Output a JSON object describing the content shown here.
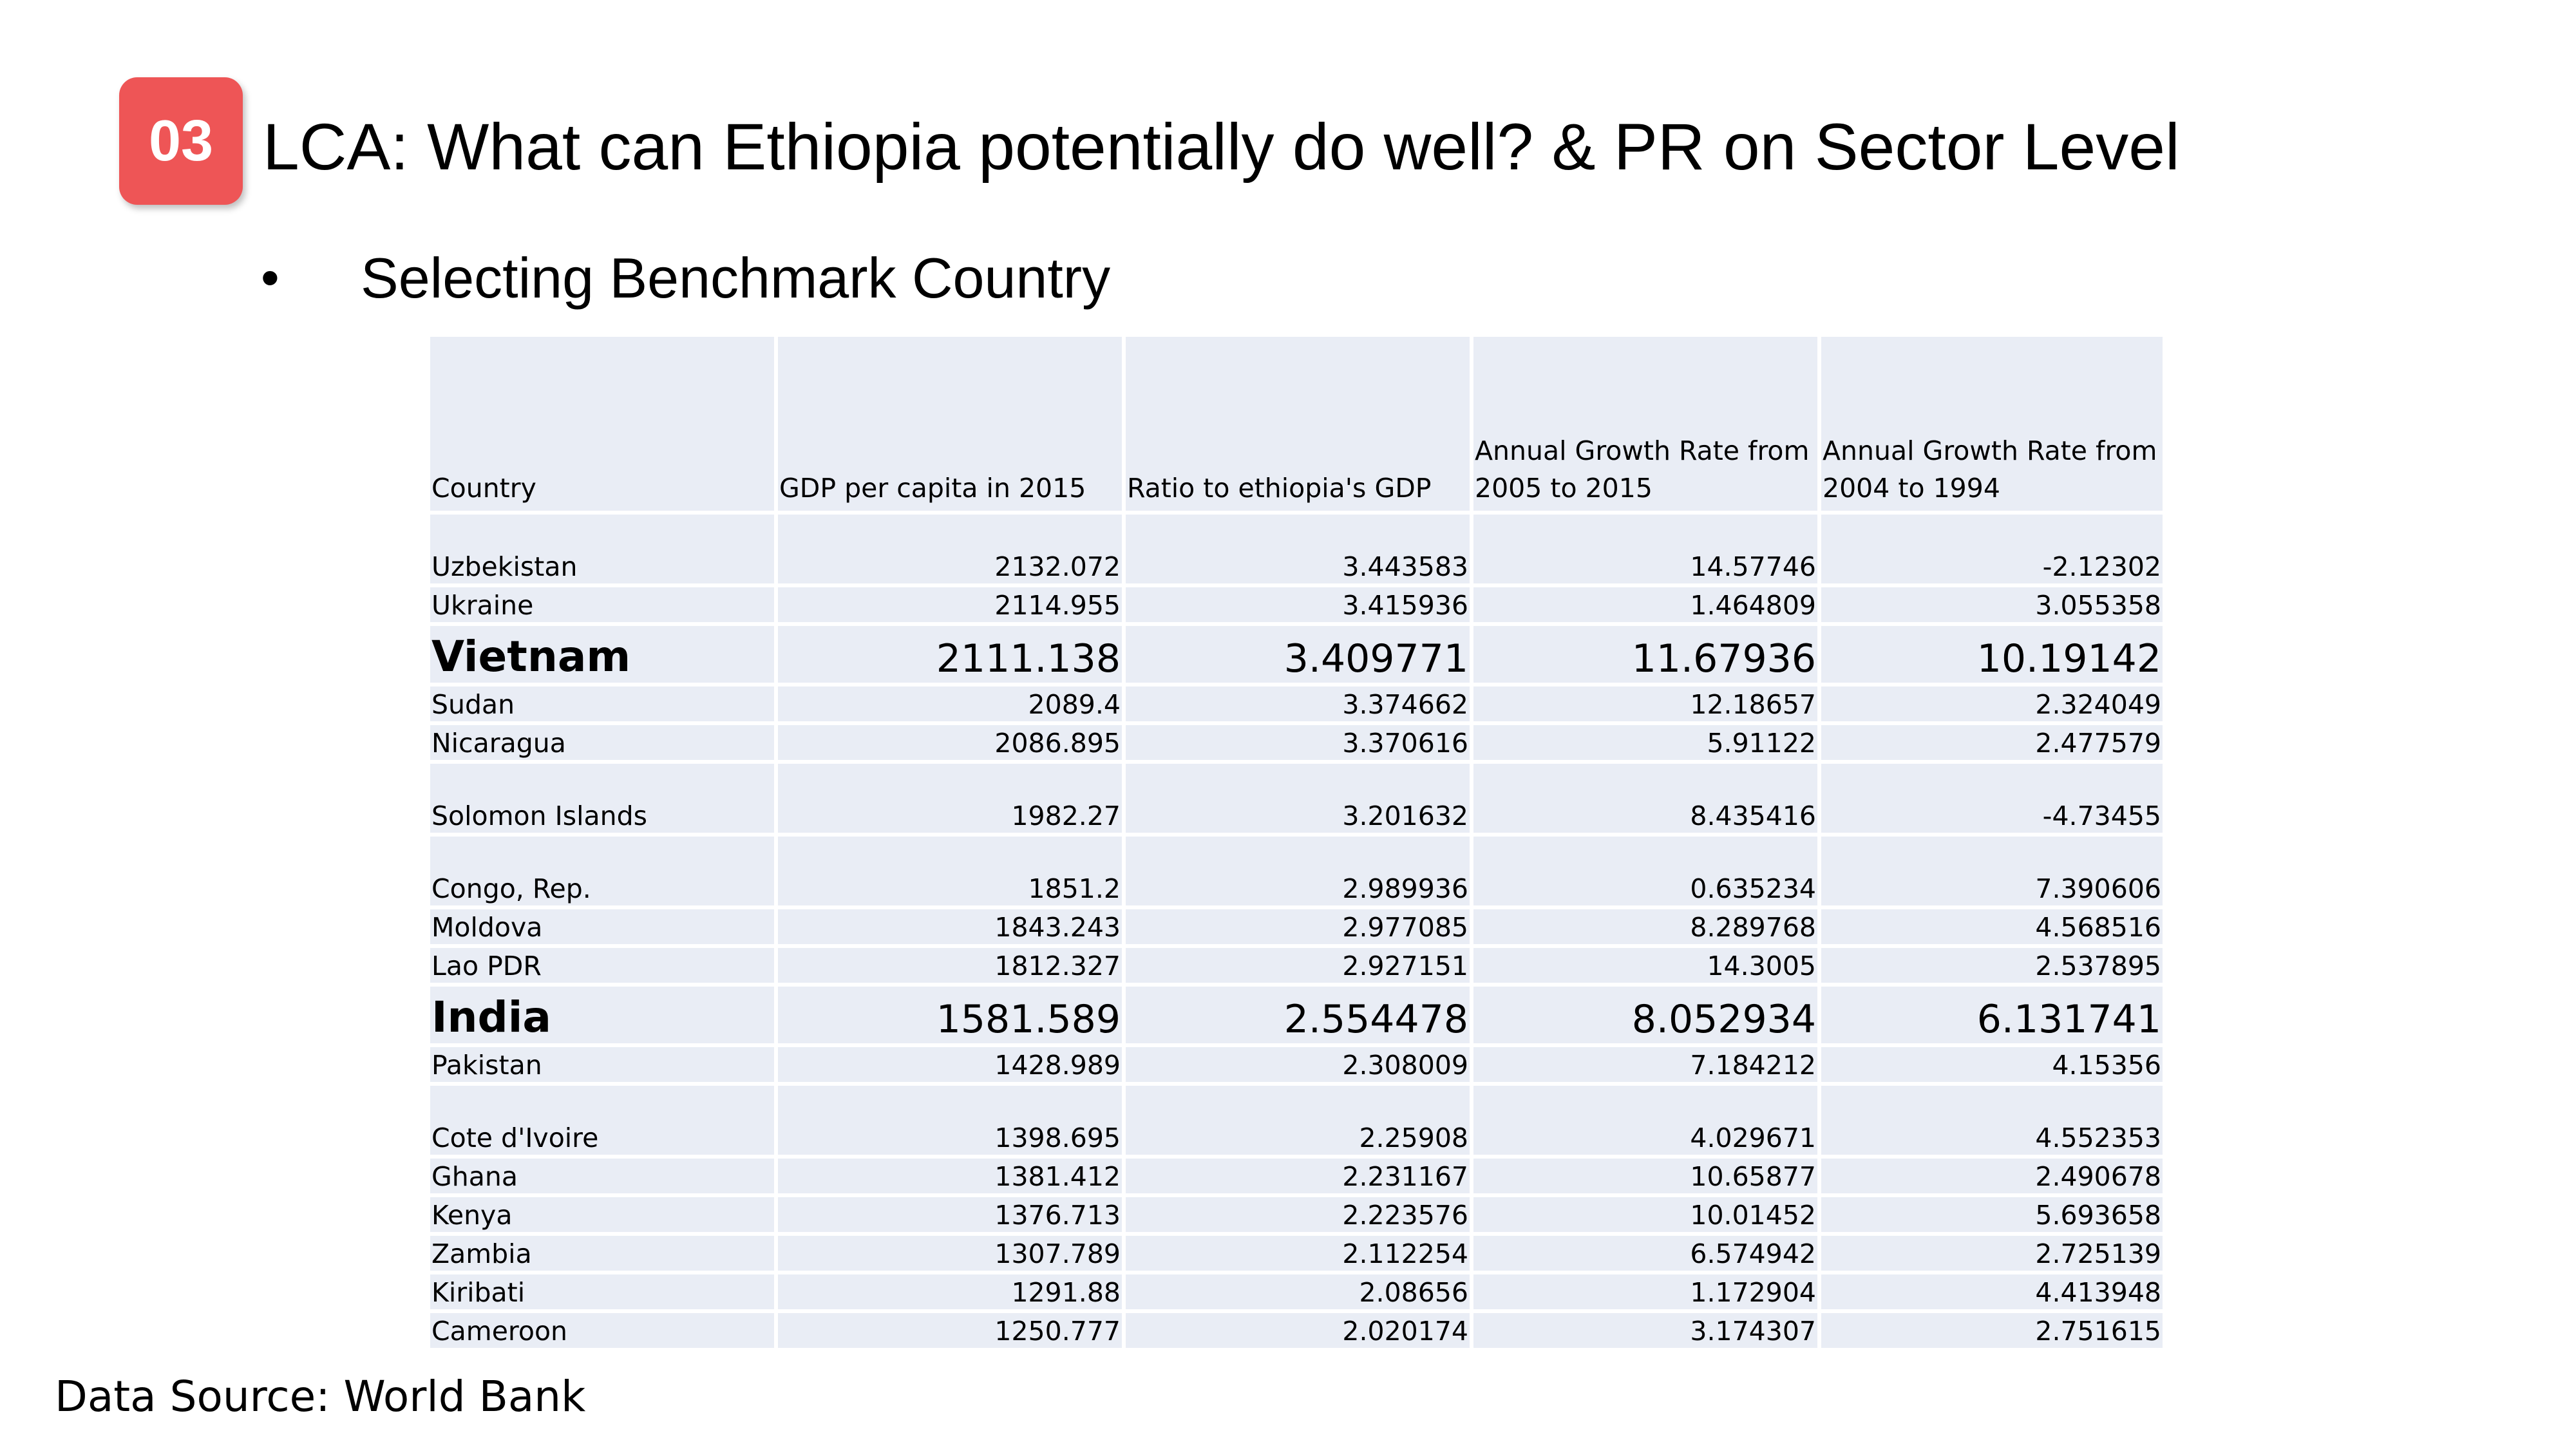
{
  "slide": {
    "badge": "03",
    "title": "LCA: What can Ethiopia potentially do well? & PR on Sector Level",
    "bullet_symbol": "•",
    "bullet_text": "Selecting Benchmark Country",
    "source": "Data Source: World Bank"
  },
  "table": {
    "headers": [
      "Country",
      "GDP per capita in 2015",
      "Ratio to ethiopia's GDP",
      "Annual Growth Rate from 2005 to 2015",
      "Annual Growth Rate from 2004 to 1994"
    ],
    "rows": [
      {
        "country": "Uzbekistan",
        "gdp": "2132.072",
        "ratio": "3.443583",
        "g1": "14.57746",
        "g2": "-2.12302"
      },
      {
        "country": "Ukraine",
        "gdp": "2114.955",
        "ratio": "3.415936",
        "g1": "1.464809",
        "g2": "3.055358"
      },
      {
        "country": "Vietnam",
        "gdp": "2111.138",
        "ratio": "3.409771",
        "g1": "11.67936",
        "g2": "10.19142"
      },
      {
        "country": "Sudan",
        "gdp": "2089.4",
        "ratio": "3.374662",
        "g1": "12.18657",
        "g2": "2.324049"
      },
      {
        "country": "Nicaragua",
        "gdp": "2086.895",
        "ratio": "3.370616",
        "g1": "5.91122",
        "g2": "2.477579"
      },
      {
        "country": "Solomon Islands",
        "gdp": "1982.27",
        "ratio": "3.201632",
        "g1": "8.435416",
        "g2": "-4.73455"
      },
      {
        "country": "Congo, Rep.",
        "gdp": "1851.2",
        "ratio": "2.989936",
        "g1": "0.635234",
        "g2": "7.390606"
      },
      {
        "country": "Moldova",
        "gdp": "1843.243",
        "ratio": "2.977085",
        "g1": "8.289768",
        "g2": "4.568516"
      },
      {
        "country": "Lao PDR",
        "gdp": "1812.327",
        "ratio": "2.927151",
        "g1": "14.3005",
        "g2": "2.537895"
      },
      {
        "country": "India",
        "gdp": "1581.589",
        "ratio": "2.554478",
        "g1": "8.052934",
        "g2": "6.131741"
      },
      {
        "country": "Pakistan",
        "gdp": "1428.989",
        "ratio": "2.308009",
        "g1": "7.184212",
        "g2": "4.15356"
      },
      {
        "country": "Cote d'Ivoire",
        "gdp": "1398.695",
        "ratio": "2.25908",
        "g1": "4.029671",
        "g2": "4.552353"
      },
      {
        "country": "Ghana",
        "gdp": "1381.412",
        "ratio": "2.231167",
        "g1": "10.65877",
        "g2": "2.490678"
      },
      {
        "country": "Kenya",
        "gdp": "1376.713",
        "ratio": "2.223576",
        "g1": "10.01452",
        "g2": "5.693658"
      },
      {
        "country": "Zambia",
        "gdp": "1307.789",
        "ratio": "2.112254",
        "g1": "6.574942",
        "g2": "2.725139"
      },
      {
        "country": "Kiribati",
        "gdp": "1291.88",
        "ratio": "2.08656",
        "g1": "1.172904",
        "g2": "4.413948"
      },
      {
        "country": "Cameroon",
        "gdp": "1250.777",
        "ratio": "2.020174",
        "g1": "3.174307",
        "g2": "2.751615"
      }
    ]
  }
}
